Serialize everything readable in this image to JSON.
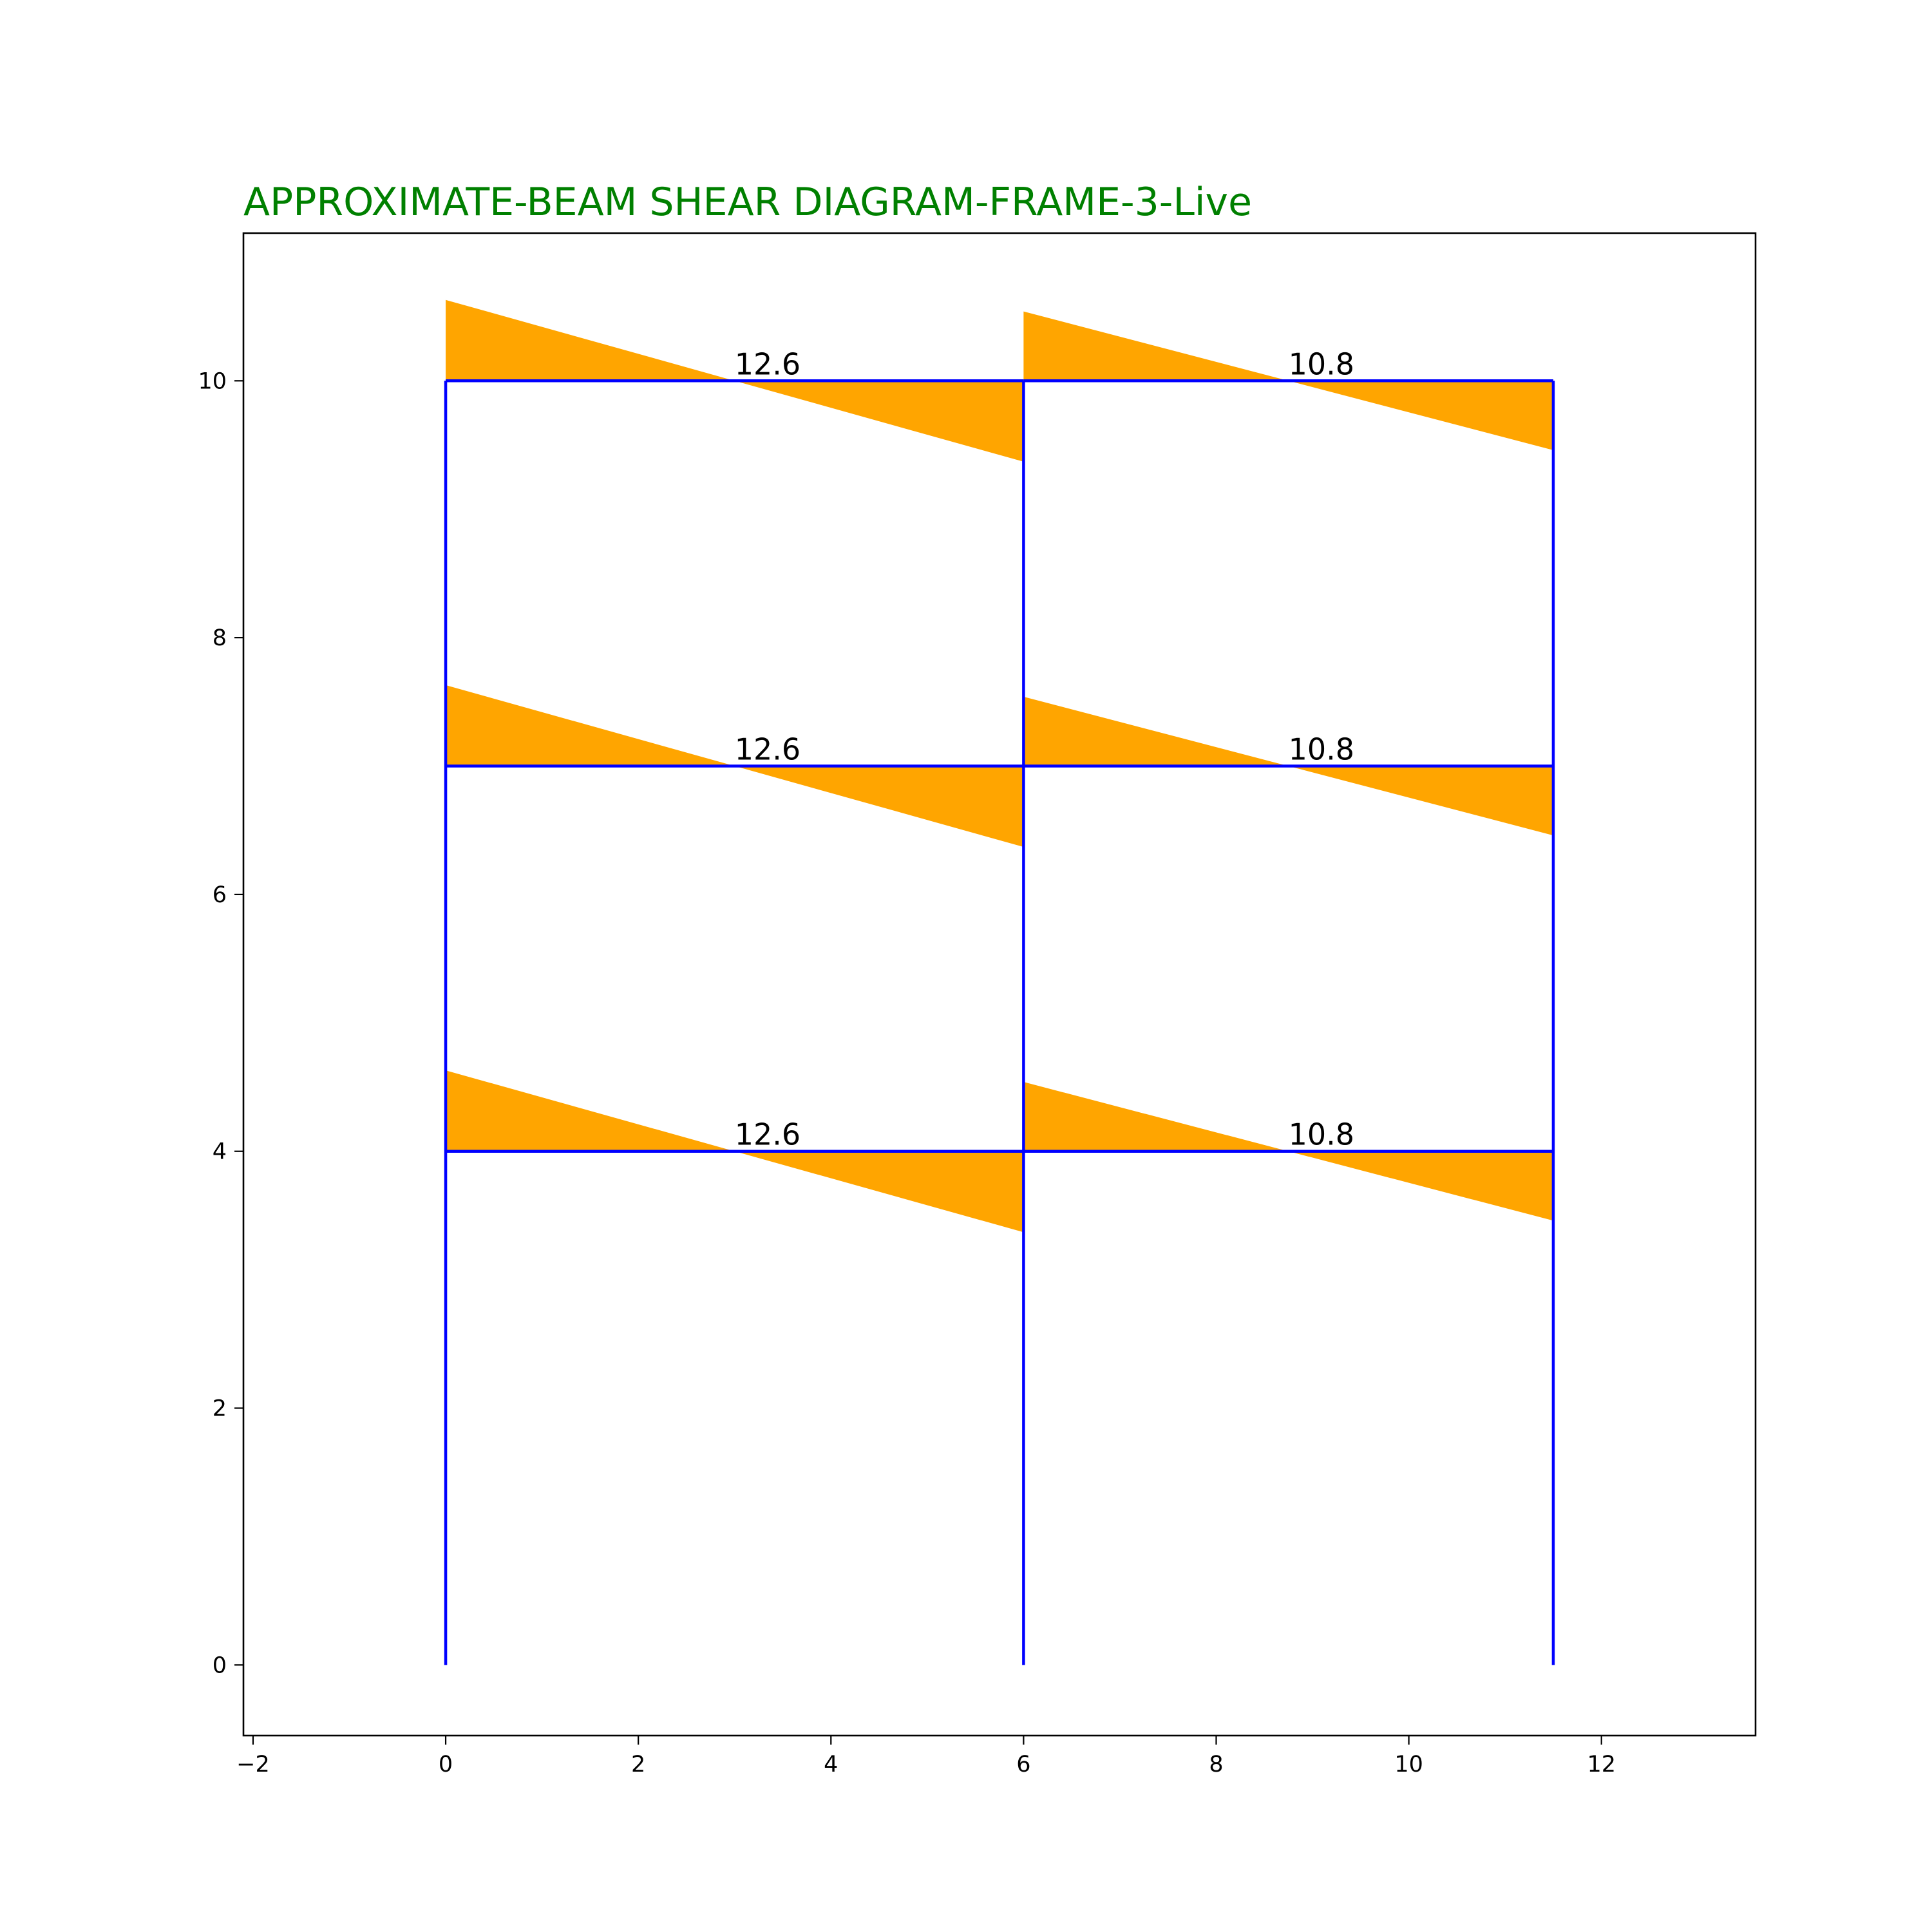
{
  "title": "APPROXIMATE-BEAM SHEAR DIAGRAM-FRAME-3-Live",
  "colors": {
    "title": "#008000",
    "frame": "#0000ff",
    "shear_fill": "#ffa500",
    "axes": "#000000"
  },
  "chart_data": {
    "type": "diagram",
    "xlim": [
      -2.1,
      13.6
    ],
    "ylim": [
      -0.55,
      11.15
    ],
    "x_ticks": [
      -2,
      0,
      2,
      4,
      6,
      8,
      10,
      12
    ],
    "x_tick_labels": [
      "−2",
      "0",
      "2",
      "4",
      "6",
      "8",
      "10",
      "12"
    ],
    "y_ticks": [
      0,
      2,
      4,
      6,
      8,
      10
    ],
    "y_tick_labels": [
      "0",
      "2",
      "4",
      "6",
      "8",
      "10"
    ],
    "columns_x": [
      0,
      6,
      11.5
    ],
    "base_y": 0,
    "floors_y": [
      4,
      7,
      10
    ],
    "beams": [
      {
        "floor": 4,
        "x_start": 0,
        "x_end": 6,
        "shear_start": 0.63,
        "shear_end": -0.63,
        "label": "12.6",
        "label_x": 3
      },
      {
        "floor": 4,
        "x_start": 6,
        "x_end": 11.5,
        "shear_start": 0.54,
        "shear_end": -0.54,
        "label": "10.8",
        "label_x": 8.75
      },
      {
        "floor": 7,
        "x_start": 0,
        "x_end": 6,
        "shear_start": 0.63,
        "shear_end": -0.63,
        "label": "12.6",
        "label_x": 3
      },
      {
        "floor": 7,
        "x_start": 6,
        "x_end": 11.5,
        "shear_start": 0.54,
        "shear_end": -0.54,
        "label": "10.8",
        "label_x": 8.75
      },
      {
        "floor": 10,
        "x_start": 0,
        "x_end": 6,
        "shear_start": 0.63,
        "shear_end": -0.63,
        "label": "12.6",
        "label_x": 3
      },
      {
        "floor": 10,
        "x_start": 6,
        "x_end": 11.5,
        "shear_start": 0.54,
        "shear_end": -0.54,
        "label": "10.8",
        "label_x": 8.75
      }
    ]
  }
}
